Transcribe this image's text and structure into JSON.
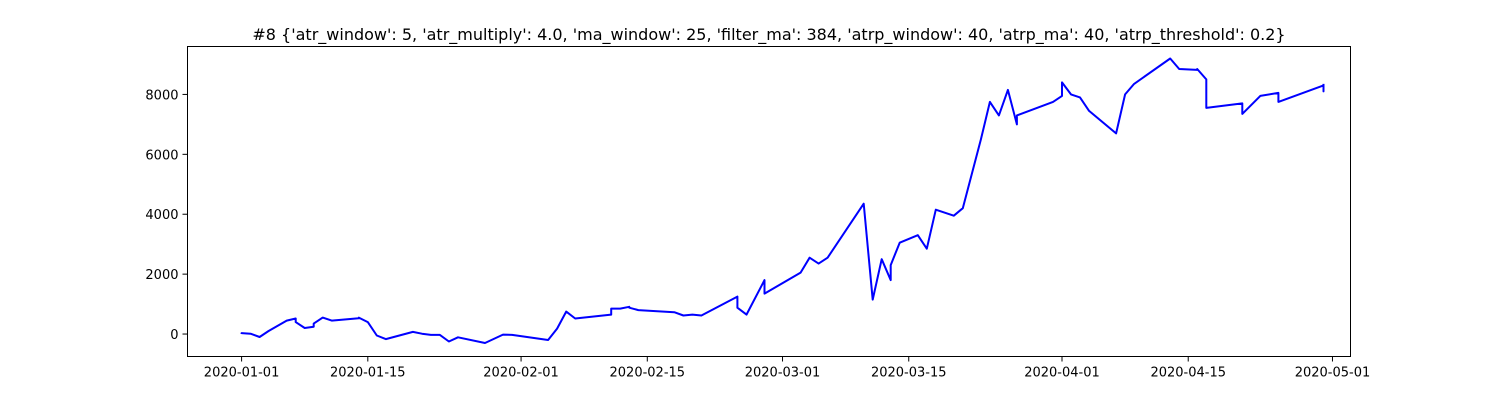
{
  "chart_data": {
    "type": "line",
    "title": "#8 {'atr_window': 5, 'atr_multiply': 4.0, 'ma_window': 25, 'filter_ma': 384, 'atrp_window': 40, 'atrp_ma': 40, 'atrp_threshold': 0.2}",
    "xlabel": "",
    "ylabel": "",
    "x_axis_type": "date",
    "xlim": [
      "2019-12-26",
      "2020-05-03"
    ],
    "ylim": [
      -750,
      9600
    ],
    "grid": false,
    "line_color": "#0000ff",
    "x_ticks": [
      "2020-01-01",
      "2020-01-15",
      "2020-02-01",
      "2020-02-15",
      "2020-03-01",
      "2020-03-15",
      "2020-04-01",
      "2020-04-15",
      "2020-05-01"
    ],
    "y_ticks": [
      0,
      2000,
      4000,
      6000,
      8000
    ],
    "y_tick_labels": [
      "0",
      "2000",
      "4000",
      "6000",
      "8000"
    ],
    "series": [
      {
        "x": [
          "2020-01-01",
          "2020-01-01",
          "2020-01-02",
          "2020-01-03",
          "2020-01-04",
          "2020-01-06",
          "2020-01-07",
          "2020-01-07",
          "2020-01-08",
          "2020-01-09",
          "2020-01-09",
          "2020-01-10",
          "2020-01-11",
          "2020-01-14",
          "2020-01-14",
          "2020-01-15",
          "2020-01-16",
          "2020-01-17",
          "2020-01-20",
          "2020-01-21",
          "2020-01-22",
          "2020-01-23",
          "2020-01-24",
          "2020-01-25",
          "2020-01-28",
          "2020-01-30",
          "2020-01-31",
          "2020-02-04",
          "2020-02-05",
          "2020-02-06",
          "2020-02-07",
          "2020-02-11",
          "2020-02-11",
          "2020-02-12",
          "2020-02-13",
          "2020-02-13",
          "2020-02-14",
          "2020-02-18",
          "2020-02-19",
          "2020-02-20",
          "2020-02-21",
          "2020-02-25",
          "2020-02-25",
          "2020-02-26",
          "2020-02-28",
          "2020-02-28",
          "2020-03-03",
          "2020-03-04",
          "2020-03-05",
          "2020-03-06",
          "2020-03-10",
          "2020-03-11",
          "2020-03-12",
          "2020-03-13",
          "2020-03-13",
          "2020-03-14",
          "2020-03-16",
          "2020-03-17",
          "2020-03-18",
          "2020-03-20",
          "2020-03-21",
          "2020-03-23",
          "2020-03-24",
          "2020-03-25",
          "2020-03-26",
          "2020-03-27",
          "2020-03-27",
          "2020-03-27",
          "2020-03-31",
          "2020-04-01",
          "2020-04-01",
          "2020-04-02",
          "2020-04-03",
          "2020-04-04",
          "2020-04-07",
          "2020-04-08",
          "2020-04-09",
          "2020-04-13",
          "2020-04-14",
          "2020-04-16",
          "2020-04-16",
          "2020-04-17",
          "2020-04-17",
          "2020-04-21",
          "2020-04-21",
          "2020-04-23",
          "2020-04-25",
          "2020-04-25",
          "2020-04-30",
          "2020-04-30",
          "2020-04-30"
        ],
        "y": [
          0,
          30,
          10,
          -100,
          100,
          450,
          520,
          400,
          200,
          240,
          350,
          550,
          450,
          530,
          550,
          400,
          -50,
          -170,
          70,
          10,
          -30,
          -30,
          -250,
          -110,
          -300,
          -20,
          -30,
          -200,
          180,
          750,
          520,
          650,
          850,
          850,
          910,
          880,
          800,
          730,
          620,
          650,
          620,
          1250,
          880,
          650,
          1800,
          1350,
          2050,
          2550,
          2350,
          2550,
          4350,
          1150,
          2500,
          1800,
          2300,
          3050,
          3300,
          2850,
          4150,
          3950,
          4200,
          6500,
          7750,
          7300,
          8150,
          7000,
          7300,
          7300,
          7750,
          7950,
          8400,
          8000,
          7900,
          7450,
          6700,
          8000,
          8350,
          9200,
          8850,
          8820,
          8850,
          8500,
          7550,
          7700,
          7350,
          7950,
          8050,
          7750,
          8300,
          8100,
          8350
        ]
      }
    ]
  }
}
